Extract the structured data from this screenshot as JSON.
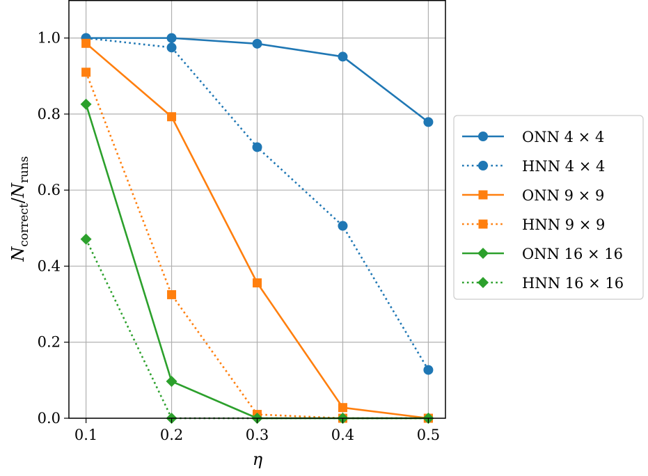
{
  "chart_data": {
    "type": "line",
    "x": [
      0.1,
      0.2,
      0.3,
      0.4,
      0.5
    ],
    "xlim": [
      0.08,
      0.52
    ],
    "ylim": [
      0.0,
      1.1
    ],
    "xticks": [
      "0.1",
      "0.2",
      "0.3",
      "0.4",
      "0.5"
    ],
    "yticks": [
      "0.0",
      "0.2",
      "0.4",
      "0.6",
      "0.8",
      "1.0"
    ],
    "xlabel": "η",
    "ylabel": {
      "main": "N",
      "main_sub": "correct",
      "separator": "/",
      "denominator": "N",
      "denominator_sub": "runs"
    },
    "grid": true,
    "legend_placement": "outside-right",
    "series": [
      {
        "name": "ONN 4 × 4",
        "color": "#1f77b4",
        "linestyle": "solid",
        "marker": "circle",
        "values": [
          1.0,
          1.0,
          0.985,
          0.951,
          0.779
        ]
      },
      {
        "name": "HNN 4 × 4",
        "color": "#1f77b4",
        "linestyle": "dotted",
        "marker": "circle",
        "values": [
          1.0,
          0.975,
          0.713,
          0.506,
          0.127
        ]
      },
      {
        "name": "ONN 9 × 9",
        "color": "#ff7f0e",
        "linestyle": "solid",
        "marker": "square",
        "values": [
          0.986,
          0.793,
          0.356,
          0.028,
          0.0
        ]
      },
      {
        "name": "HNN 9 × 9",
        "color": "#ff7f0e",
        "linestyle": "dotted",
        "marker": "square",
        "values": [
          0.91,
          0.325,
          0.01,
          0.0,
          0.0
        ]
      },
      {
        "name": "ONN 16 × 16",
        "color": "#2ca02c",
        "linestyle": "solid",
        "marker": "diamond",
        "values": [
          0.826,
          0.097,
          0.0,
          0.0,
          0.0
        ]
      },
      {
        "name": "HNN 16 × 16",
        "color": "#2ca02c",
        "linestyle": "dotted",
        "marker": "diamond",
        "values": [
          0.471,
          0.0,
          0.0,
          0.0,
          0.0
        ]
      }
    ]
  }
}
